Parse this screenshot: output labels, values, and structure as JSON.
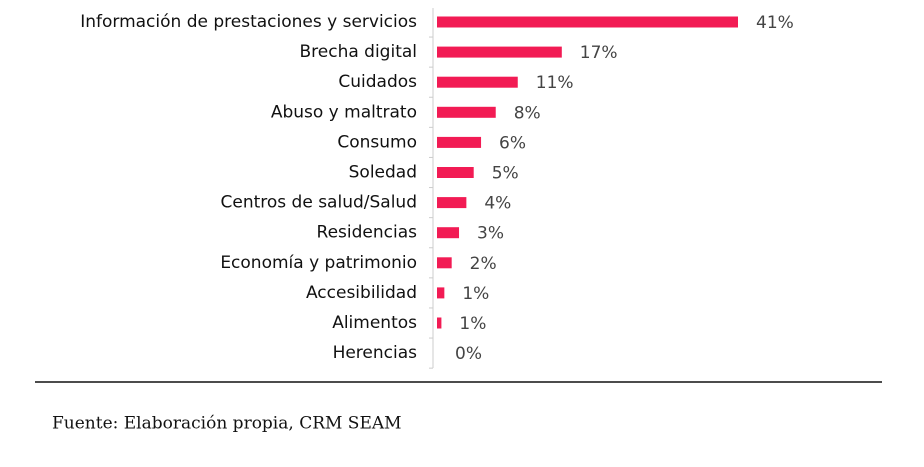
{
  "chart_data": {
    "type": "bar",
    "orientation": "horizontal",
    "categories": [
      "Información de prestaciones y servicios",
      "Brecha digital",
      "Cuidados",
      "Abuso y maltrato",
      "Consumo",
      "Soledad",
      "Centros de salud/Salud",
      "Residencias",
      "Economía y patrimonio",
      "Accesibilidad",
      "Alimentos",
      "Herencias"
    ],
    "values": [
      41,
      17,
      11,
      8,
      6,
      5,
      4,
      3,
      2,
      1,
      0.6,
      0
    ],
    "value_labels": [
      "41%",
      "17%",
      "11%",
      "8%",
      "6%",
      "5%",
      "4%",
      "3%",
      "2%",
      "1%",
      "1%",
      "0%"
    ],
    "color": "#f21b54"
  },
  "source": "Fuente: Elaboración propia, CRM SEAM"
}
